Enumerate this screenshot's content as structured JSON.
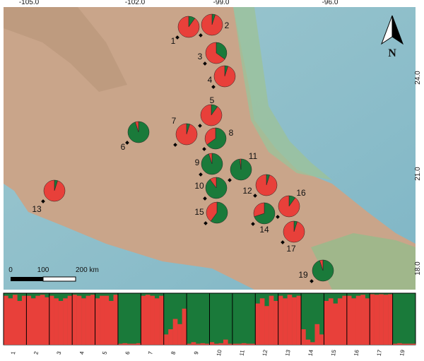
{
  "map": {
    "lon_labels": [
      "-105.0",
      "-102.0",
      "-99.0",
      "-96.0"
    ],
    "lat_labels": [
      "24.0",
      "21.0",
      "18.0"
    ],
    "north": "N",
    "scale": [
      "0",
      "100",
      "200 km"
    ],
    "sites": [
      {
        "label": "1",
        "green": 0.1,
        "red": 0.9
      },
      {
        "label": "2",
        "green": 0.05,
        "red": 0.95
      },
      {
        "label": "3",
        "green": 0.35,
        "red": 0.65
      },
      {
        "label": "4",
        "green": 0.05,
        "red": 0.95
      },
      {
        "label": "5",
        "green": 0.1,
        "red": 0.9
      },
      {
        "label": "6",
        "green": 0.95,
        "red": 0.05
      },
      {
        "label": "7",
        "green": 0.05,
        "red": 0.95
      },
      {
        "label": "8",
        "green": 0.65,
        "red": 0.35
      },
      {
        "label": "9",
        "green": 0.95,
        "red": 0.05
      },
      {
        "label": "10",
        "green": 0.9,
        "red": 0.1
      },
      {
        "label": "11",
        "green": 0.98,
        "red": 0.02
      },
      {
        "label": "12",
        "green": 0.05,
        "red": 0.95
      },
      {
        "label": "13",
        "green": 0.05,
        "red": 0.95
      },
      {
        "label": "14",
        "green": 0.7,
        "red": 0.3
      },
      {
        "label": "15",
        "green": 0.6,
        "red": 0.4
      },
      {
        "label": "16",
        "green": 0.1,
        "red": 0.9
      },
      {
        "label": "17",
        "green": 0.05,
        "red": 0.95
      },
      {
        "label": "19",
        "green": 0.95,
        "red": 0.05
      }
    ]
  },
  "structure": {
    "populations": [
      {
        "label": "1",
        "red": [
          0.95,
          0.9,
          0.97,
          0.85,
          0.95
        ]
      },
      {
        "label": "2",
        "red": [
          0.95,
          0.9,
          0.95,
          0.97,
          0.92
        ]
      },
      {
        "label": "3",
        "red": [
          0.95,
          0.9,
          0.85,
          0.9,
          0.95
        ]
      },
      {
        "label": "4",
        "red": [
          0.97,
          0.95,
          0.9,
          0.95,
          0.97
        ]
      },
      {
        "label": "5",
        "red": [
          0.9,
          0.95,
          0.95,
          0.85,
          0.97
        ]
      },
      {
        "label": "6",
        "red": [
          0.02,
          0.03,
          0.02,
          0.02,
          0.03
        ]
      },
      {
        "label": "7",
        "red": [
          0.95,
          0.97,
          0.95,
          0.9,
          0.95
        ]
      },
      {
        "label": "8",
        "red": [
          0.2,
          0.3,
          0.5,
          0.4,
          0.7
        ]
      },
      {
        "label": "9",
        "red": [
          0.02,
          0.05,
          0.02,
          0.03,
          0.02
        ]
      },
      {
        "label": "10",
        "red": [
          0.05,
          0.02,
          0.03,
          0.1,
          0.02
        ]
      },
      {
        "label": "11",
        "red": [
          0.02,
          0.02,
          0.03,
          0.02,
          0.02
        ]
      },
      {
        "label": "12",
        "red": [
          0.8,
          0.9,
          0.75,
          0.95,
          0.85
        ]
      },
      {
        "label": "13",
        "red": [
          0.95,
          0.9,
          0.97,
          0.92,
          0.95
        ]
      },
      {
        "label": "14",
        "red": [
          0.3,
          0.1,
          0.05,
          0.4,
          0.2
        ]
      },
      {
        "label": "15",
        "red": [
          0.85,
          0.9,
          0.8,
          0.9,
          0.95
        ]
      },
      {
        "label": "16",
        "red": [
          0.95,
          0.9,
          0.95,
          0.97,
          0.9
        ]
      },
      {
        "label": "17",
        "red": [
          0.98,
          0.97,
          0.98,
          0.97,
          0.98
        ]
      },
      {
        "label": "19",
        "red": [
          0.02,
          0.03,
          0.02,
          0.02,
          0.02
        ]
      }
    ]
  }
}
